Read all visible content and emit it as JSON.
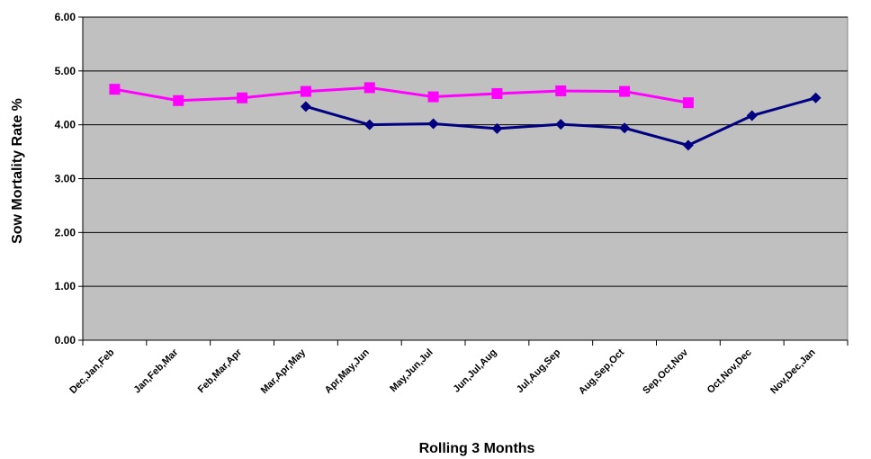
{
  "chart_data": {
    "type": "line",
    "xlabel": "Rolling 3 Months",
    "ylabel": "Sow Mortality Rate %",
    "ylim": [
      0,
      6
    ],
    "yticks": [
      "0.00",
      "1.00",
      "2.00",
      "3.00",
      "4.00",
      "5.00",
      "6.00"
    ],
    "grid": true,
    "plot_background": "#C0C0C0",
    "categories": [
      "Dec,Jan,Feb",
      "Jan,Feb,Mar",
      "Feb,Mar,Apr",
      "Mar,Apr,May",
      "Apr,May,Jun",
      "May,Jun,Jul",
      "Jun,Jul,Aug",
      "Jul,Aug,Sep",
      "Aug,Sep,Oct",
      "Sep,Oct,Nov",
      "Oct,Nov,Dec",
      "Nov,Dec,Jan"
    ],
    "series": [
      {
        "color": "#FF00FF",
        "marker": "square",
        "values": [
          4.66,
          4.45,
          4.5,
          4.62,
          4.69,
          4.52,
          4.58,
          4.63,
          4.62,
          4.41,
          null,
          null
        ]
      },
      {
        "color": "#000080",
        "marker": "diamond",
        "values": [
          null,
          null,
          null,
          4.34,
          4.0,
          4.02,
          3.93,
          4.01,
          3.94,
          3.62,
          4.17,
          4.5
        ]
      }
    ]
  }
}
